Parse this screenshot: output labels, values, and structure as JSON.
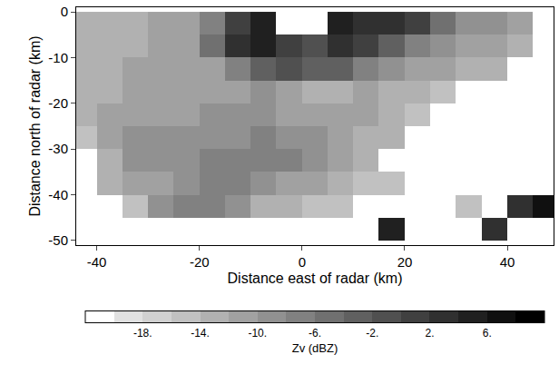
{
  "chart_data": {
    "type": "heatmap",
    "x_label": "Distance east of radar (km)",
    "y_label": "Distance north of radar (km)",
    "xlim": [
      -44,
      49
    ],
    "ylim": [
      -51,
      1
    ],
    "xticks": [
      -40,
      -20,
      0,
      20,
      40
    ],
    "yticks": [
      0,
      -10,
      -20,
      -30,
      -40,
      -50
    ],
    "grid": false,
    "x": [
      -42.5,
      -37.5,
      -32.5,
      -27.5,
      -22.5,
      -17.5,
      -12.5,
      -7.5,
      -2.5,
      2.5,
      7.5,
      12.5,
      17.5,
      22.5,
      27.5,
      32.5,
      37.5,
      42.5,
      47.5
    ],
    "y": [
      -2.5,
      -7.5,
      -12.5,
      -17.5,
      -22.5,
      -27.5,
      -32.5,
      -37.5,
      -42.5,
      -47.5
    ],
    "cells": [
      [
        -14,
        -14,
        -14,
        -12,
        -12,
        -8,
        0,
        4,
        null,
        null,
        4,
        2,
        2,
        0,
        -6,
        -10,
        -10,
        -12,
        null
      ],
      [
        -14,
        -14,
        -14,
        -12,
        -12,
        -6,
        2,
        4,
        0,
        -2,
        2,
        0,
        -4,
        -8,
        -10,
        -12,
        -12,
        -14,
        null
      ],
      [
        -14,
        -14,
        -12,
        -12,
        -12,
        -12,
        -8,
        -4,
        -2,
        -4,
        -4,
        -8,
        -10,
        -12,
        -12,
        -14,
        -14,
        null,
        null
      ],
      [
        -14,
        -14,
        -12,
        -12,
        -12,
        -12,
        -12,
        -10,
        -12,
        -14,
        -14,
        -12,
        -14,
        -14,
        -16,
        null,
        null,
        null,
        null
      ],
      [
        -14,
        -12,
        -12,
        -12,
        -12,
        -10,
        -10,
        -10,
        -12,
        -12,
        -12,
        -12,
        -14,
        -16,
        null,
        null,
        null,
        null,
        null
      ],
      [
        -16,
        -12,
        -10,
        -10,
        -10,
        -10,
        -10,
        -8,
        -10,
        -10,
        -12,
        -14,
        -14,
        null,
        null,
        null,
        null,
        null,
        null
      ],
      [
        null,
        -14,
        -10,
        -10,
        -10,
        -8,
        -8,
        -8,
        -8,
        -10,
        -12,
        -14,
        null,
        null,
        null,
        null,
        null,
        null,
        null
      ],
      [
        null,
        -14,
        -12,
        -12,
        -10,
        -8,
        -8,
        -10,
        -12,
        -12,
        -14,
        -16,
        -16,
        null,
        null,
        null,
        null,
        null,
        null
      ],
      [
        null,
        null,
        -16,
        -10,
        -8,
        -8,
        -10,
        -14,
        -14,
        -16,
        -16,
        null,
        null,
        null,
        null,
        -16,
        null,
        2,
        6
      ],
      [
        null,
        null,
        null,
        null,
        null,
        null,
        null,
        null,
        null,
        null,
        null,
        null,
        4,
        null,
        null,
        null,
        2,
        null,
        null
      ]
    ],
    "colorbar": {
      "title": "Zv (dBZ)",
      "range": [
        -22,
        10
      ],
      "levels": [
        -22,
        -20,
        -18,
        -16,
        -14,
        -12,
        -10,
        -8,
        -6,
        -4,
        -2,
        0,
        2,
        4,
        6,
        8,
        10
      ],
      "ticks": [
        {
          "value": -18,
          "label": "-18."
        },
        {
          "value": -14,
          "label": "-14."
        },
        {
          "value": -10,
          "label": "-10."
        },
        {
          "value": -6,
          "label": "-6."
        },
        {
          "value": -2,
          "label": "-2."
        },
        {
          "value": 2,
          "label": "2."
        },
        {
          "value": 6,
          "label": "6."
        }
      ]
    }
  }
}
